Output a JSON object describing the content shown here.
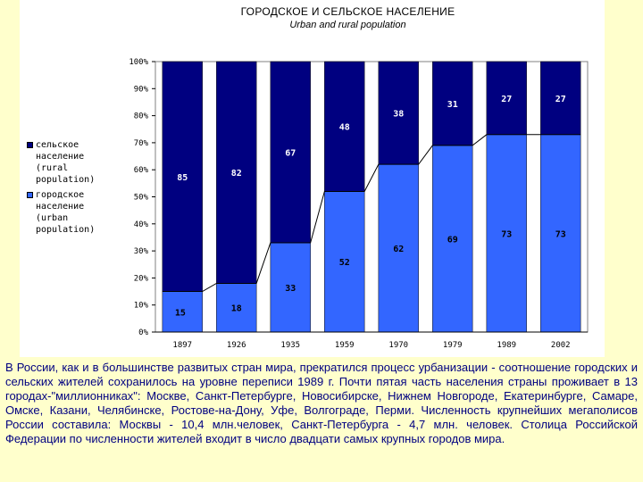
{
  "chart_data": {
    "type": "bar",
    "stacked": true,
    "title": "ГОРОДСКОЕ И СЕЛЬСКОЕ НАСЕЛЕНИЕ",
    "subtitle": "Urban and rural population",
    "categories": [
      "1897",
      "1926",
      "1935",
      "1959",
      "1970",
      "1979",
      "1989",
      "2002"
    ],
    "series": [
      {
        "name": "городское население (urban population)",
        "color": "#3366ff",
        "values": [
          15,
          18,
          33,
          52,
          62,
          69,
          73,
          73
        ],
        "labels": [
          "15",
          "18",
          "33",
          "52",
          "62",
          "69",
          "73",
          "73"
        ]
      },
      {
        "name": "сельское население (rural population)",
        "color": "#000080",
        "values": [
          85,
          82,
          67,
          48,
          38,
          31,
          27,
          27
        ],
        "labels": [
          "85",
          "82",
          "67",
          "48",
          "38",
          "31",
          "27",
          "27"
        ]
      }
    ],
    "ytick_labels": [
      "0%",
      "10%",
      "20%",
      "30%",
      "40%",
      "50%",
      "60%",
      "70%",
      "80%",
      "90%",
      "100%"
    ],
    "ylim": [
      0,
      100
    ],
    "legend": {
      "position": "left"
    }
  },
  "legend_entries": [
    {
      "text": "сельское\nнаселение\n(rural\npopulation)",
      "color": "#000080"
    },
    {
      "text": "городское\nнаселение\n(urban\npopulation)",
      "color": "#3366ff"
    }
  ],
  "body_text": "В России, как и в большинстве развитых стран мира, прекратился процесс урбанизации - соотношение городских и сельских жителей сохранилось на уровне переписи 1989 г. Почти пятая часть населения страны проживает в 13 городах-\"миллионниках\": Москве, Санкт-Петербурге, Новосибирске, Нижнем Новгороде, Екатеринбурге, Самаре, Омске, Казани, Челябинске, Ростове-на-Дону, Уфе, Волгограде, Перми. Численность крупнейших мегаполисов России составила: Москвы - 10,4 млн.человек, Санкт-Петербурга - 4,7 млн. человек. Столица Российской Федерации по численности жителей входит в число двадцати самых крупных городов мира."
}
